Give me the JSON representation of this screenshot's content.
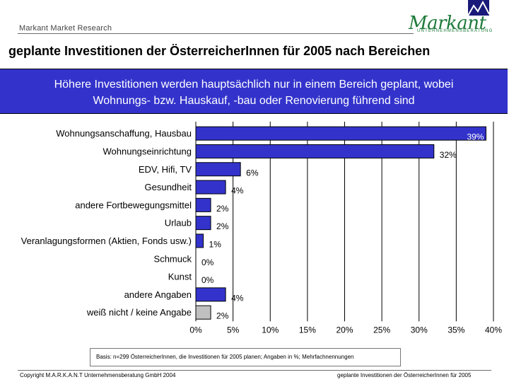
{
  "header": {
    "brand_text": "Markant Market Research",
    "logo_word": "Markant",
    "logo_sub": "UNTERNEHMENSBERATUNG"
  },
  "page_title": "geplante Investitionen der ÖsterreicherInnen für 2005 nach Bereichen",
  "subtitle": {
    "line1": "Höhere Investitionen werden hauptsächlich nur in einem Bereich geplant, wobei",
    "line2": "Wohnungs- bzw. Hauskauf, -bau oder Renovierung führend sind"
  },
  "chart_data": {
    "type": "bar",
    "orientation": "horizontal",
    "categories": [
      "Wohnungsanschaffung, Hausbau",
      "Wohnungseinrichtung",
      "EDV, Hifi, TV",
      "Gesundheit",
      "andere Fortbewegungsmittel",
      "Urlaub",
      "Veranlagungsformen (Aktien, Fonds usw.)",
      "Schmuck",
      "Kunst",
      "andere Angaben",
      "weiß nicht / keine Angabe"
    ],
    "values": [
      39,
      32,
      6,
      4,
      2,
      2,
      1,
      0,
      0,
      4,
      2
    ],
    "value_labels": [
      "39%",
      "32%",
      "6%",
      "4%",
      "2%",
      "2%",
      "1%",
      "0%",
      "0%",
      "4%",
      "2%"
    ],
    "xlim": [
      0,
      40
    ],
    "x_ticks": [
      "0%",
      "5%",
      "10%",
      "15%",
      "20%",
      "25%",
      "30%",
      "35%",
      "40%"
    ],
    "grid": "vertical",
    "colors": {
      "bar": "#3333cc",
      "bar_no_answer": "#c0c0c0",
      "grid": "#000000"
    }
  },
  "note": "Basis: n=299 ÖsterreicherInnen, die Investitionen für 2005 planen; Angaben in %; Mehrfachnennungen",
  "footer": {
    "left": "Copyright M.A.R.K.A.N.T Unternehmensberatung GmbH 2004",
    "right": "geplante Investitionen der ÖsterreicherInnen für 2005"
  }
}
